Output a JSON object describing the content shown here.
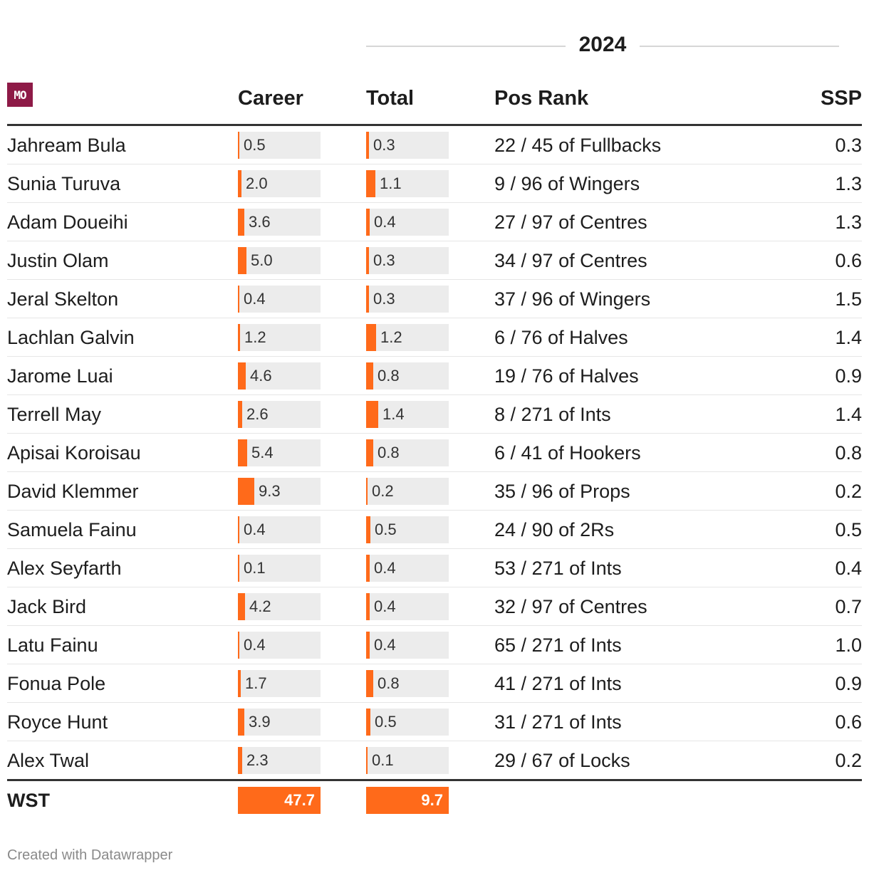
{
  "group_header": "2024",
  "logo_text": "MO",
  "columns": {
    "career": "Career",
    "total": "Total",
    "pos_rank": "Pos Rank",
    "ssp": "SSP"
  },
  "chart_data": {
    "type": "table",
    "bar_scale_max": {
      "career": 47.7,
      "total": 9.7
    },
    "rows": [
      {
        "player": "Jahream Bula",
        "career": 0.5,
        "total": 0.3,
        "pos_rank": "22 / 45 of Fullbacks",
        "ssp": "0.3"
      },
      {
        "player": "Sunia Turuva",
        "career": 2.0,
        "total": 1.1,
        "pos_rank": "9 / 96 of Wingers",
        "ssp": "1.3"
      },
      {
        "player": "Adam Doueihi",
        "career": 3.6,
        "total": 0.4,
        "pos_rank": "27 / 97 of Centres",
        "ssp": "1.3"
      },
      {
        "player": "Justin Olam",
        "career": 5.0,
        "total": 0.3,
        "pos_rank": "34 / 97 of Centres",
        "ssp": "0.6"
      },
      {
        "player": "Jeral Skelton",
        "career": 0.4,
        "total": 0.3,
        "pos_rank": "37 / 96 of Wingers",
        "ssp": "1.5"
      },
      {
        "player": "Lachlan Galvin",
        "career": 1.2,
        "total": 1.2,
        "pos_rank": "6 / 76 of Halves",
        "ssp": "1.4"
      },
      {
        "player": "Jarome Luai",
        "career": 4.6,
        "total": 0.8,
        "pos_rank": "19 / 76 of Halves",
        "ssp": "0.9"
      },
      {
        "player": "Terrell May",
        "career": 2.6,
        "total": 1.4,
        "pos_rank": "8 / 271 of Ints",
        "ssp": "1.4"
      },
      {
        "player": "Apisai Koroisau",
        "career": 5.4,
        "total": 0.8,
        "pos_rank": "6 / 41 of Hookers",
        "ssp": "0.8"
      },
      {
        "player": "David Klemmer",
        "career": 9.3,
        "total": 0.2,
        "pos_rank": "35 / 96 of Props",
        "ssp": "0.2"
      },
      {
        "player": "Samuela Fainu",
        "career": 0.4,
        "total": 0.5,
        "pos_rank": "24 / 90 of 2Rs",
        "ssp": "0.5"
      },
      {
        "player": "Alex Seyfarth",
        "career": 0.1,
        "total": 0.4,
        "pos_rank": "53 / 271 of Ints",
        "ssp": "0.4"
      },
      {
        "player": "Jack Bird",
        "career": 4.2,
        "total": 0.4,
        "pos_rank": "32 / 97 of Centres",
        "ssp": "0.7"
      },
      {
        "player": "Latu Fainu",
        "career": 0.4,
        "total": 0.4,
        "pos_rank": "65 / 271 of Ints",
        "ssp": "1.0"
      },
      {
        "player": "Fonua Pole",
        "career": 1.7,
        "total": 0.8,
        "pos_rank": "41 / 271 of Ints",
        "ssp": "0.9"
      },
      {
        "player": "Royce Hunt",
        "career": 3.9,
        "total": 0.5,
        "pos_rank": "31 / 271 of Ints",
        "ssp": "0.6"
      },
      {
        "player": "Alex Twal",
        "career": 2.3,
        "total": 0.1,
        "pos_rank": "29 / 67 of Locks",
        "ssp": "0.2"
      }
    ],
    "total_row": {
      "label": "WST",
      "career": "47.7",
      "total": "9.7"
    }
  },
  "colors": {
    "bar": "#ff6a1a",
    "bar_track": "#ececec",
    "logo_bg": "#8e1a47"
  },
  "footer": "Created with Datawrapper"
}
